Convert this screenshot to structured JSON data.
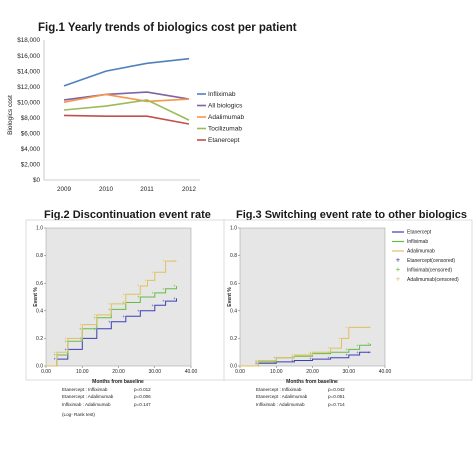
{
  "figures": {
    "fig1": {
      "title": "Fig.1 Yearly trends of biologics cost per patient"
    },
    "fig2": {
      "title": "Fig.2 Discontinuation event rate",
      "xlabel": "Months from baseline",
      "ylabel": "Event %",
      "stats": [
        {
          "label": "Etanercept : Infliximab",
          "p": "p=0.012"
        },
        {
          "label": "Etanercept : Adalimumab",
          "p": "p=0.006"
        },
        {
          "label": "Infliximab : Adalimumab",
          "p": "p=0.147"
        }
      ],
      "test": "(Log- Rank test)"
    },
    "fig3": {
      "title": "Fig.3 Switching event rate to other biologics",
      "xlabel": "Months from baseline",
      "ylabel": "Event %",
      "stats": [
        {
          "label": "Etanercept : Infliximab",
          "p": "p=0.042"
        },
        {
          "label": "Etanercept : Adalimumab",
          "p": "p=0.051"
        },
        {
          "label": "Infliximab : Adalimumab",
          "p": "p=0.714"
        }
      ],
      "legend": [
        "Etanercept",
        "Infliximab",
        "Adalimumab",
        "Etanercept(censored)",
        "Infliximab(censored)",
        "Adalimumab(censored)"
      ]
    }
  },
  "chart_data": [
    {
      "type": "line",
      "title": "Fig.1 Yearly trends of biologics cost per patient",
      "ylabel": "Biologics cost",
      "xlabel": "",
      "categories": [
        "2009",
        "2010",
        "2011",
        "2012"
      ],
      "ylim": [
        0,
        18000
      ],
      "yticks": [
        "$0",
        "$2,000",
        "$4,000",
        "$6,000",
        "$8,000",
        "$10,000",
        "$12,000",
        "$14,000",
        "$16,000",
        "$18,000"
      ],
      "grid": false,
      "legend_position": "right",
      "series": [
        {
          "name": "Infliximab",
          "color": "#4f81bd",
          "values": [
            12100,
            14000,
            15000,
            15600
          ]
        },
        {
          "name": "All biologics",
          "color": "#8064a2",
          "values": [
            10300,
            11000,
            11300,
            10400
          ]
        },
        {
          "name": "Adalimumab",
          "color": "#f79646",
          "values": [
            10000,
            11000,
            10100,
            10400
          ]
        },
        {
          "name": "Tocilizumab",
          "color": "#9bbb59",
          "values": [
            9000,
            9500,
            10300,
            7700
          ]
        },
        {
          "name": "Etanercept",
          "color": "#c0504d",
          "values": [
            8300,
            8200,
            8200,
            7200
          ]
        }
      ]
    },
    {
      "type": "line",
      "title": "Fig.2 Discontinuation event rate",
      "xlabel": "Months from baseline",
      "ylabel": "Event %",
      "xlim": [
        0,
        40
      ],
      "ylim": [
        0,
        1.0
      ],
      "xticks": [
        "0.00",
        "10.00",
        "20.00",
        "30.00",
        "40.00"
      ],
      "yticks": [
        "0.0",
        "0.2",
        "0.4",
        "0.6",
        "0.8",
        "1.0"
      ],
      "series": [
        {
          "name": "Etanercept",
          "color": "#3d3db8",
          "x": [
            0,
            3,
            6,
            10,
            14,
            18,
            22,
            26,
            30,
            33,
            36
          ],
          "y": [
            0,
            0.05,
            0.12,
            0.2,
            0.27,
            0.32,
            0.36,
            0.4,
            0.44,
            0.47,
            0.49
          ]
        },
        {
          "name": "Infliximab",
          "color": "#66bb44",
          "x": [
            0,
            3,
            6,
            10,
            14,
            18,
            22,
            26,
            30,
            33,
            36
          ],
          "y": [
            0,
            0.08,
            0.18,
            0.27,
            0.35,
            0.41,
            0.46,
            0.5,
            0.53,
            0.56,
            0.58
          ]
        },
        {
          "name": "Adalimumab",
          "color": "#e0c060",
          "x": [
            0,
            3,
            6,
            10,
            14,
            18,
            22,
            26,
            28,
            30,
            33,
            36
          ],
          "y": [
            0,
            0.1,
            0.2,
            0.3,
            0.37,
            0.45,
            0.52,
            0.58,
            0.62,
            0.68,
            0.76,
            0.76
          ]
        }
      ]
    },
    {
      "type": "line",
      "title": "Fig.3 Switching event rate to other biologics",
      "xlabel": "Months from baseline",
      "ylabel": "Event %",
      "xlim": [
        0,
        40
      ],
      "ylim": [
        0,
        1.0
      ],
      "xticks": [
        "0.00",
        "10.00",
        "20.00",
        "30.00",
        "40.00"
      ],
      "yticks": [
        "0.0",
        "0.2",
        "0.4",
        "0.6",
        "0.8",
        "1.0"
      ],
      "legend_position": "right",
      "series": [
        {
          "name": "Etanercept",
          "color": "#3d3db8",
          "x": [
            0,
            5,
            10,
            15,
            20,
            25,
            30,
            33,
            36
          ],
          "y": [
            0,
            0.02,
            0.03,
            0.04,
            0.05,
            0.06,
            0.08,
            0.1,
            0.1
          ]
        },
        {
          "name": "Infliximab",
          "color": "#66bb44",
          "x": [
            0,
            5,
            10,
            15,
            20,
            25,
            30,
            33,
            36
          ],
          "y": [
            0,
            0.03,
            0.06,
            0.07,
            0.09,
            0.1,
            0.12,
            0.15,
            0.16
          ]
        },
        {
          "name": "Adalimumab",
          "color": "#e0c060",
          "x": [
            0,
            5,
            10,
            15,
            20,
            25,
            28,
            30,
            33,
            36
          ],
          "y": [
            0,
            0.04,
            0.06,
            0.08,
            0.1,
            0.13,
            0.2,
            0.28,
            0.28,
            0.28
          ]
        }
      ]
    }
  ]
}
